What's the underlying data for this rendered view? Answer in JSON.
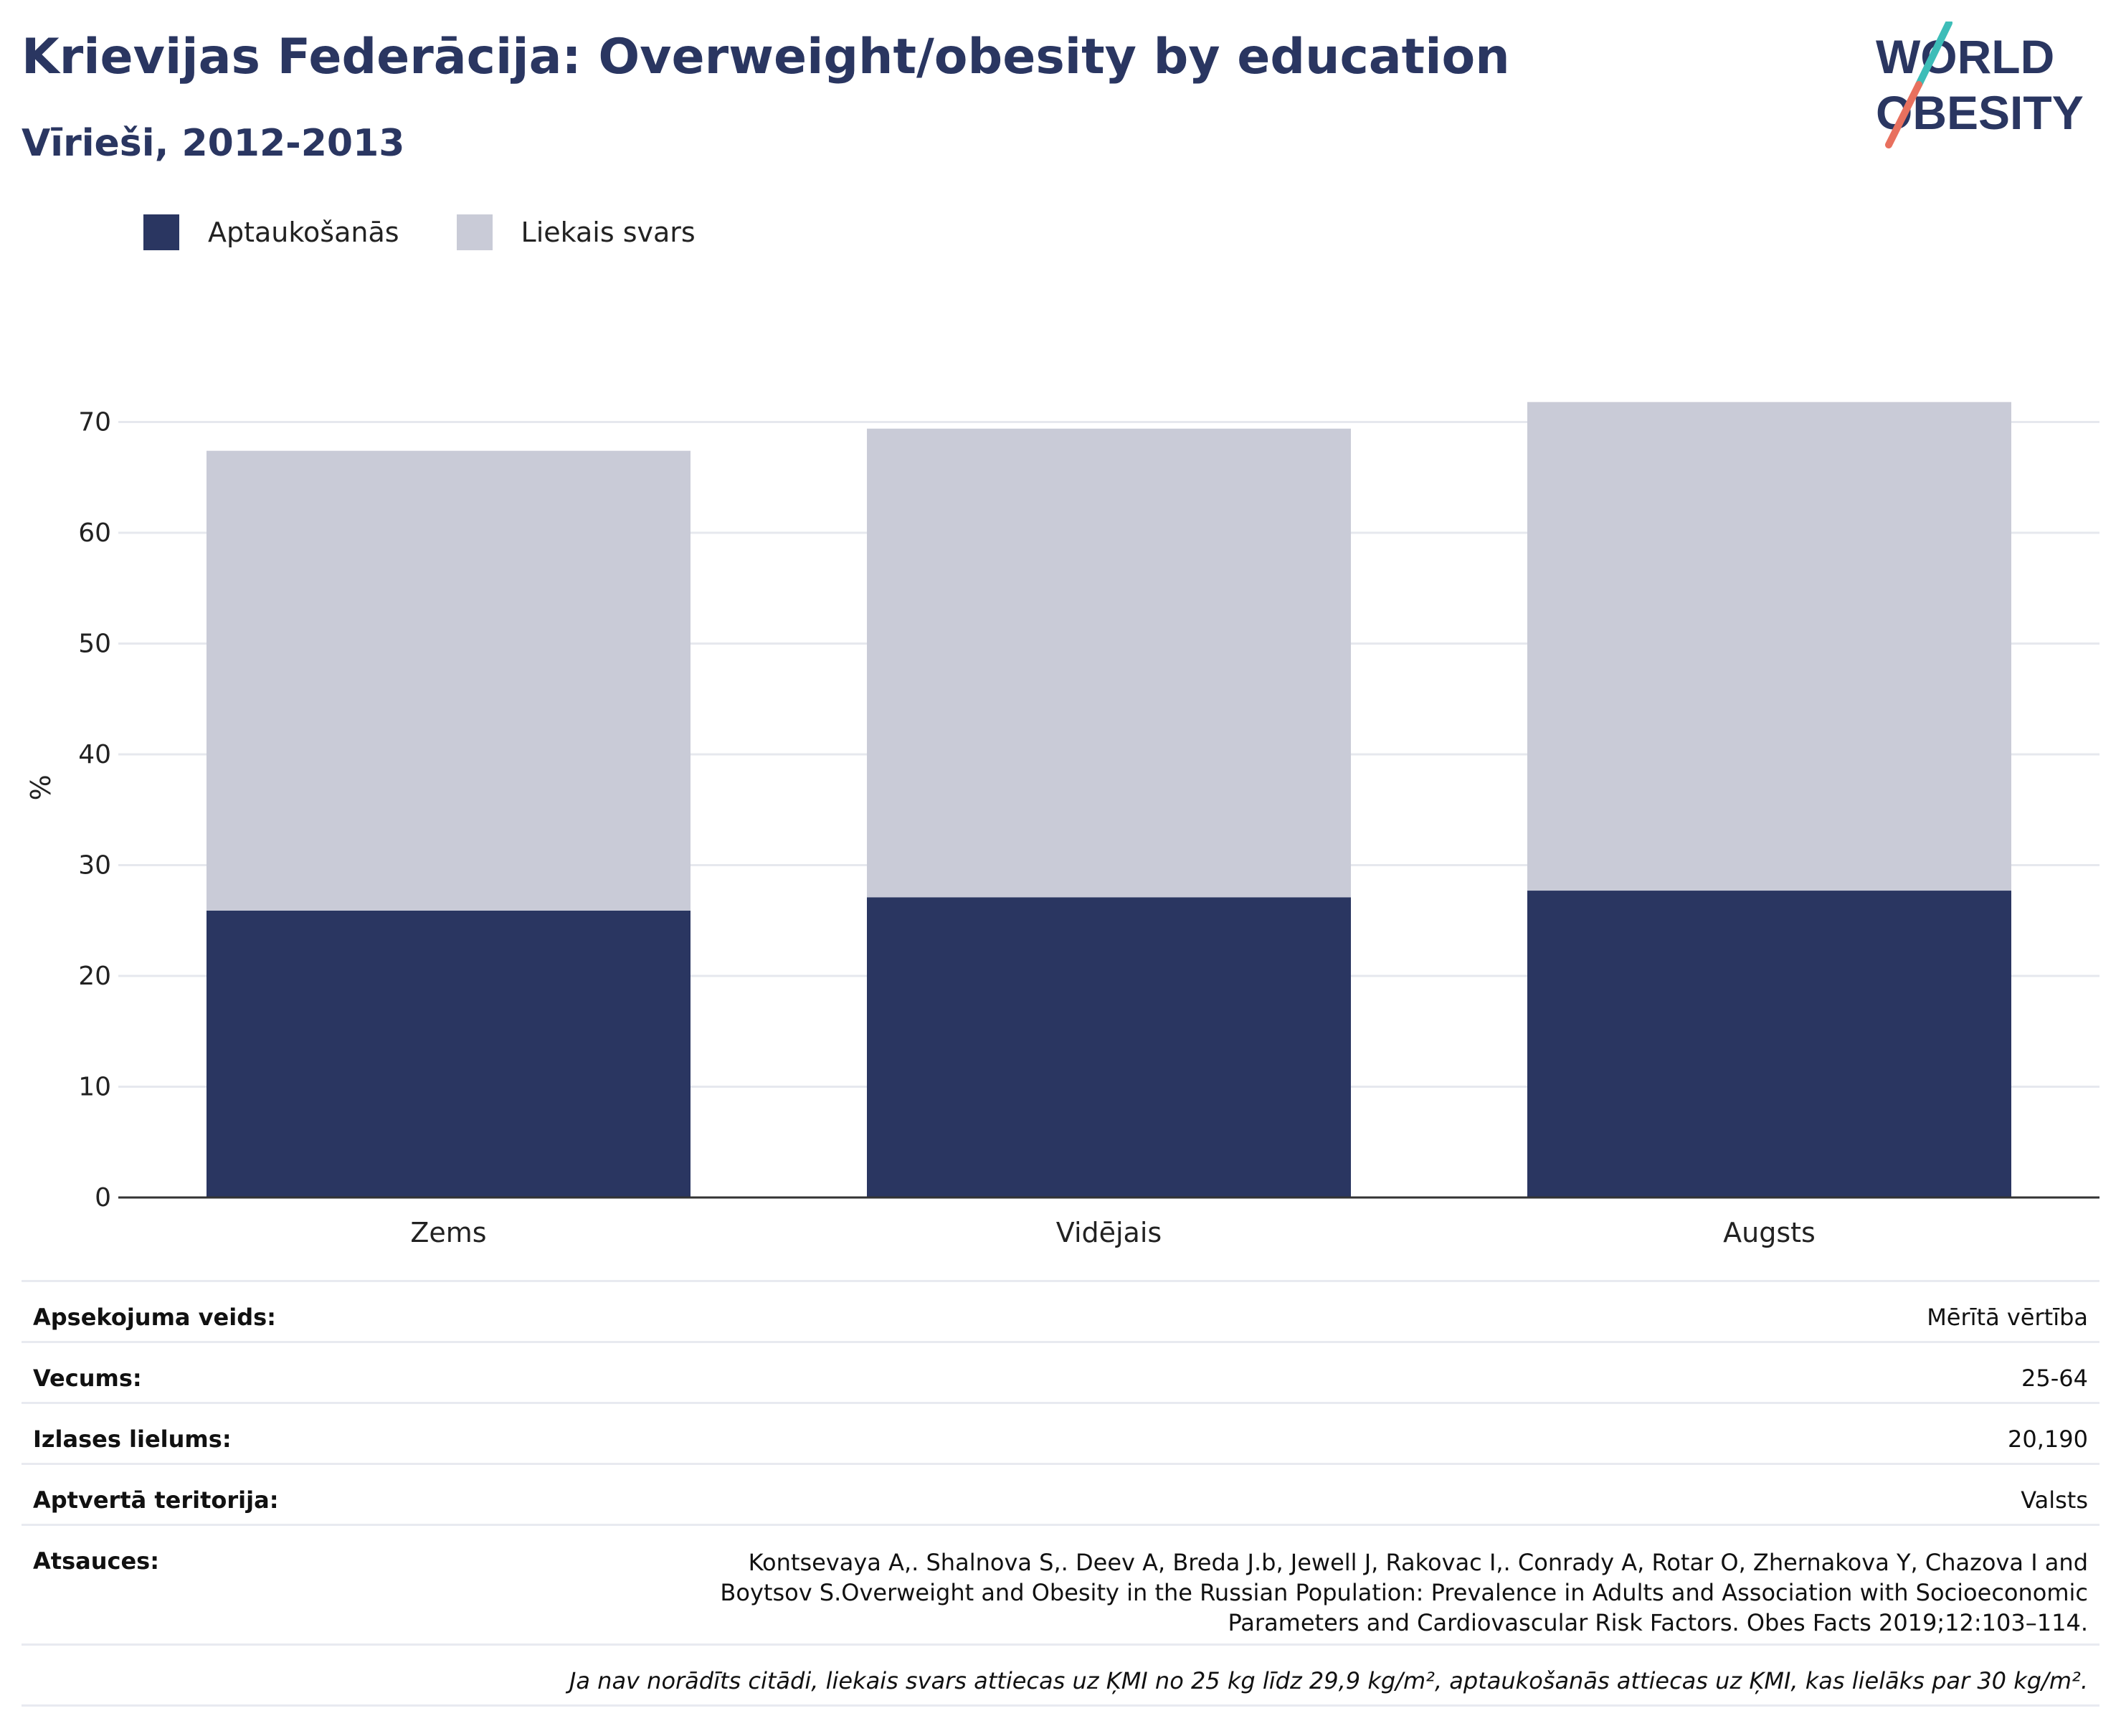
{
  "header": {
    "title": "Krievijas Federācija: Overweight/obesity by education",
    "subtitle": "Vīrieši, 2012-2013"
  },
  "logo": {
    "line1": "WORLD",
    "line2": "OBESITY"
  },
  "legend": [
    {
      "label": "Aptaukošanās",
      "color": "#2a3661"
    },
    {
      "label": "Liekais svars",
      "color": "#c9cbd7"
    }
  ],
  "chart_data": {
    "type": "bar",
    "stacked": true,
    "categories": [
      "Zems",
      "Vidējais",
      "Augsts"
    ],
    "series": [
      {
        "name": "Aptaukošanās",
        "values": [
          25.9,
          27.1,
          27.7
        ],
        "color": "#2a3661"
      },
      {
        "name": "Liekais svars",
        "values": [
          41.5,
          42.3,
          44.1
        ],
        "color": "#c9cbd7"
      }
    ],
    "ylabel": "%",
    "ylim": [
      0,
      75
    ],
    "yticks": [
      "0",
      "10",
      "20",
      "30",
      "40",
      "50",
      "60",
      "70"
    ],
    "grid": true
  },
  "meta": {
    "rows": [
      {
        "label": "Apsekojuma veids:",
        "value": "Mērītā vērtība"
      },
      {
        "label": "Vecums:",
        "value": "25-64"
      },
      {
        "label": "Izlases lielums:",
        "value": "20,190"
      },
      {
        "label": "Aptvertā teritorija:",
        "value": "Valsts"
      },
      {
        "label": "Atsauces:",
        "value": "Kontsevaya A,. Shalnova S,. Deev A, Breda J.b, Jewell J, Rakovac I,. Conrady A, Rotar O, Zhernakova Y, Chazova I and Boytsov S.Overweight and Obesity in the Russian Population: Prevalence in Adults and Association with Socioeconomic Parameters and Cardiovascular Risk Factors. Obes Facts 2019;12:103–114."
      }
    ],
    "note": "Ja nav norādīts citādi, liekais svars attiecas uz ĶMI no 25 kg līdz 29,9 kg/m², aptaukošanās attiecas uz ĶMI, kas lielāks par 30 kg/m²."
  }
}
